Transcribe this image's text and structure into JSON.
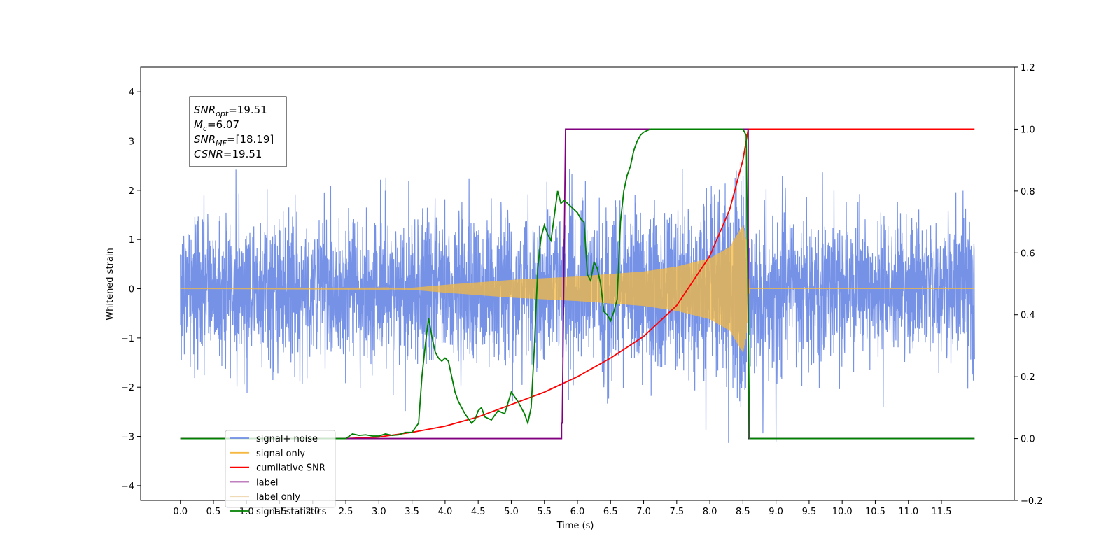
{
  "chart_data": {
    "type": "line",
    "xlabel": "Time (s)",
    "ylabel": "Whitened strain",
    "xlim": [
      -0.6,
      12.6
    ],
    "ylim": [
      -4.3,
      4.5
    ],
    "y2lim": [
      -0.2,
      1.2
    ],
    "x_ticks": [
      "0.0",
      "0.5",
      "1.0",
      "1.5",
      "2.0",
      "2.5",
      "3.0",
      "3.5",
      "4.0",
      "4.5",
      "5.0",
      "5.5",
      "6.0",
      "6.5",
      "7.0",
      "7.5",
      "8.0",
      "8.5",
      "9.0",
      "9.5",
      "10.0",
      "10.5",
      "11.0",
      "11.5"
    ],
    "y_ticks": [
      "4",
      "3",
      "2",
      "1",
      "0",
      "−1",
      "−2",
      "−3",
      "−4"
    ],
    "y2_ticks": [
      "1.2",
      "1.0",
      "0.8",
      "0.6",
      "0.4",
      "0.2",
      "0.0",
      "−0.2"
    ],
    "legend_position": "lower-left",
    "info_box": {
      "lines": [
        {
          "sym": "SNR",
          "sub": "opt",
          "value": "=19.51"
        },
        {
          "sym": "M",
          "sub": "c",
          "value": "=6.07"
        },
        {
          "sym": "SNR",
          "sub": "MF",
          "value": "=[18.19]"
        },
        {
          "sym": "CSNR",
          "sub": "",
          "value": "=19.51"
        }
      ]
    },
    "series": [
      {
        "name": "signal+ noise",
        "color": "#6f8ce6",
        "axis": "left",
        "noise_sd": 0.75,
        "x_range": [
          0,
          12.0
        ]
      },
      {
        "name": "signal only",
        "color": "#f5b942",
        "axis": "left",
        "envelope": {
          "x": [
            0,
            3.0,
            3.5,
            4.0,
            5.0,
            6.0,
            7.0,
            7.5,
            8.0,
            8.3,
            8.5,
            8.55,
            8.6,
            12.0
          ],
          "amp": [
            0,
            0.01,
            0.02,
            0.08,
            0.18,
            0.25,
            0.35,
            0.45,
            0.62,
            0.85,
            1.3,
            1.0,
            0.0,
            0.0
          ]
        }
      },
      {
        "name": "cumilative SNR",
        "color": "#ff0000",
        "axis": "right",
        "x": [
          0.0,
          2.5,
          3.0,
          3.5,
          4.0,
          4.5,
          5.0,
          5.5,
          6.0,
          6.5,
          7.0,
          7.5,
          8.0,
          8.3,
          8.5,
          8.58,
          8.6,
          12.0
        ],
        "y": [
          0.0,
          0.0,
          0.005,
          0.02,
          0.04,
          0.07,
          0.11,
          0.15,
          0.2,
          0.26,
          0.33,
          0.43,
          0.59,
          0.74,
          0.9,
          1.0,
          1.0,
          1.0
        ]
      },
      {
        "name": "label",
        "color": "#800080",
        "axis": "right",
        "x": [
          0.0,
          5.76,
          5.76,
          5.77,
          5.82,
          8.58,
          8.58,
          8.62,
          12.0
        ],
        "y": [
          0.0,
          0.0,
          0.05,
          0.05,
          1.0,
          1.0,
          0.0,
          0.0,
          0.0
        ]
      },
      {
        "name": "label only",
        "color": "#f0d9b5",
        "axis": "right",
        "x": [],
        "y": []
      },
      {
        "name": "signal statistics",
        "color": "#008000",
        "axis": "right",
        "x": [
          0.0,
          2.5,
          2.6,
          2.7,
          2.8,
          2.9,
          3.0,
          3.1,
          3.2,
          3.3,
          3.4,
          3.5,
          3.6,
          3.65,
          3.7,
          3.75,
          3.8,
          3.85,
          3.9,
          3.95,
          4.0,
          4.05,
          4.1,
          4.15,
          4.2,
          4.3,
          4.4,
          4.45,
          4.5,
          4.55,
          4.6,
          4.7,
          4.8,
          4.9,
          5.0,
          5.1,
          5.2,
          5.25,
          5.3,
          5.35,
          5.4,
          5.45,
          5.5,
          5.55,
          5.6,
          5.65,
          5.7,
          5.75,
          5.8,
          5.9,
          6.0,
          6.05,
          6.1,
          6.15,
          6.2,
          6.25,
          6.3,
          6.35,
          6.4,
          6.45,
          6.5,
          6.55,
          6.6,
          6.65,
          6.7,
          6.75,
          6.8,
          6.85,
          6.9,
          6.95,
          7.0,
          7.1,
          7.2,
          7.5,
          8.0,
          8.5,
          8.55,
          8.6,
          8.65,
          12.0
        ],
        "y": [
          0.0,
          0.0,
          0.015,
          0.01,
          0.012,
          0.008,
          0.008,
          0.015,
          0.01,
          0.012,
          0.02,
          0.02,
          0.05,
          0.2,
          0.3,
          0.39,
          0.33,
          0.28,
          0.26,
          0.25,
          0.26,
          0.25,
          0.2,
          0.15,
          0.12,
          0.08,
          0.05,
          0.06,
          0.09,
          0.1,
          0.07,
          0.06,
          0.09,
          0.08,
          0.15,
          0.12,
          0.08,
          0.05,
          0.1,
          0.3,
          0.55,
          0.65,
          0.69,
          0.66,
          0.64,
          0.72,
          0.8,
          0.76,
          0.77,
          0.75,
          0.73,
          0.71,
          0.7,
          0.53,
          0.51,
          0.57,
          0.55,
          0.5,
          0.41,
          0.4,
          0.38,
          0.41,
          0.45,
          0.7,
          0.8,
          0.85,
          0.88,
          0.93,
          0.96,
          0.98,
          0.99,
          1.0,
          1.0,
          1.0,
          1.0,
          1.0,
          0.98,
          0.0,
          0.0,
          0.0
        ]
      }
    ]
  }
}
